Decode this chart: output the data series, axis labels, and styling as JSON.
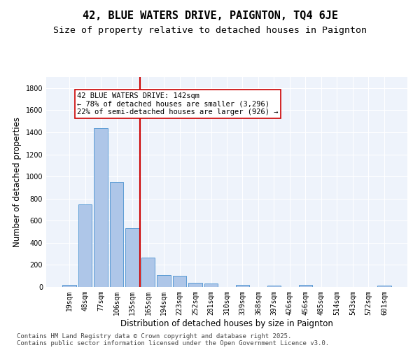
{
  "title": "42, BLUE WATERS DRIVE, PAIGNTON, TQ4 6JE",
  "subtitle": "Size of property relative to detached houses in Paignton",
  "xlabel": "Distribution of detached houses by size in Paignton",
  "ylabel": "Number of detached properties",
  "categories": [
    "19sqm",
    "48sqm",
    "77sqm",
    "106sqm",
    "135sqm",
    "165sqm",
    "194sqm",
    "223sqm",
    "252sqm",
    "281sqm",
    "310sqm",
    "339sqm",
    "368sqm",
    "397sqm",
    "426sqm",
    "456sqm",
    "485sqm",
    "514sqm",
    "543sqm",
    "572sqm",
    "601sqm"
  ],
  "values": [
    20,
    745,
    1440,
    950,
    535,
    265,
    110,
    100,
    40,
    30,
    0,
    20,
    0,
    15,
    0,
    20,
    0,
    0,
    0,
    0,
    10
  ],
  "bar_color": "#aec6e8",
  "bar_edge_color": "#5b9bd5",
  "vline_x_index": 4,
  "vline_color": "#cc0000",
  "annotation_text": "42 BLUE WATERS DRIVE: 142sqm\n← 78% of detached houses are smaller (3,296)\n22% of semi-detached houses are larger (926) →",
  "annotation_box_color": "#cc0000",
  "ylim": [
    0,
    1900
  ],
  "yticks": [
    0,
    200,
    400,
    600,
    800,
    1000,
    1200,
    1400,
    1600,
    1800
  ],
  "footer_line1": "Contains HM Land Registry data © Crown copyright and database right 2025.",
  "footer_line2": "Contains public sector information licensed under the Open Government Licence v3.0.",
  "bg_color": "#eef3fb",
  "grid_color": "#ffffff",
  "title_fontsize": 11,
  "subtitle_fontsize": 9.5,
  "tick_fontsize": 7,
  "ylabel_fontsize": 8.5,
  "xlabel_fontsize": 8.5,
  "footer_fontsize": 6.5,
  "annotation_fontsize": 7.5
}
